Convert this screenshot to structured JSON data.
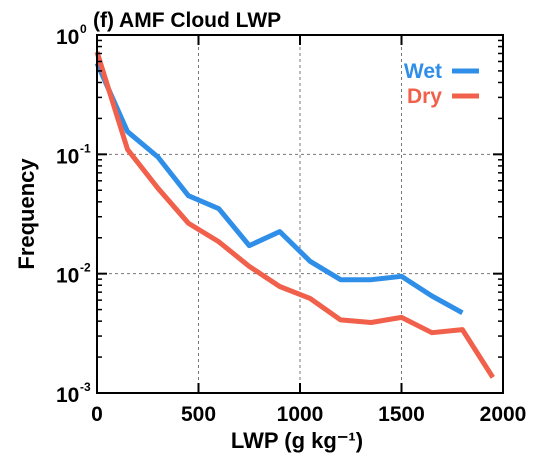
{
  "chart_data": {
    "type": "line",
    "title": "(f) AMF Cloud LWP",
    "xlabel": "LWP (g kg⁻¹)",
    "ylabel": "Frequency",
    "xlim": [
      0,
      2000
    ],
    "ylim": [
      0.001,
      1
    ],
    "yscale": "log",
    "grid": true,
    "legend_position": "top-right",
    "x_ticks": [
      0,
      500,
      1000,
      1500,
      2000
    ],
    "y_ticks": [
      {
        "base": "10",
        "exp": "-3",
        "value": 0.001
      },
      {
        "base": "10",
        "exp": "-2",
        "value": 0.01
      },
      {
        "base": "10",
        "exp": "-1",
        "value": 0.1
      },
      {
        "base": "10",
        "exp": "0",
        "value": 1
      }
    ],
    "series": [
      {
        "name": "Wet",
        "color": "#2f8fe8",
        "x": [
          0,
          150,
          300,
          450,
          600,
          750,
          900,
          1050,
          1200,
          1350,
          1500,
          1650,
          1800
        ],
        "y": [
          0.58,
          0.155,
          0.095,
          0.045,
          0.035,
          0.0172,
          0.0225,
          0.0127,
          0.0089,
          0.0089,
          0.0095,
          0.0065,
          0.0047
        ]
      },
      {
        "name": "Dry",
        "color": "#f0604a",
        "x": [
          0,
          150,
          300,
          450,
          600,
          750,
          900,
          1050,
          1200,
          1350,
          1500,
          1650,
          1800,
          1950
        ],
        "y": [
          0.72,
          0.11,
          0.052,
          0.0265,
          0.0185,
          0.0115,
          0.0078,
          0.0062,
          0.0041,
          0.0039,
          0.0043,
          0.0032,
          0.0034,
          0.00135
        ]
      }
    ]
  }
}
